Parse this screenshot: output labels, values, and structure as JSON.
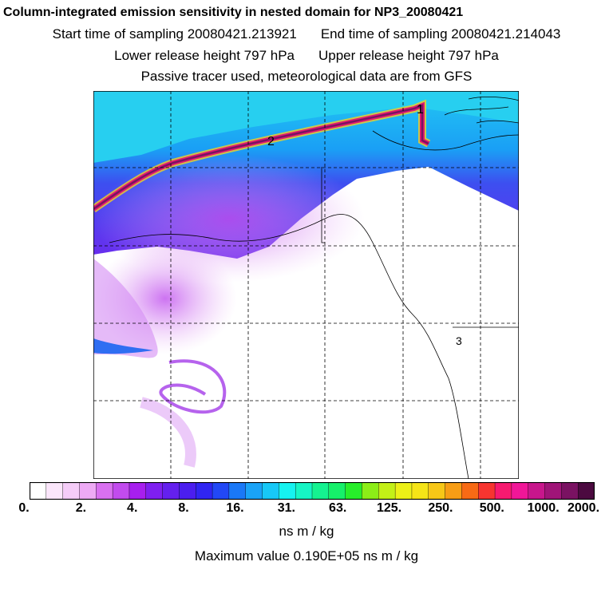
{
  "title": "Column-integrated emission sensitivity in nested domain for NP3_20080421",
  "start_time": "Start time of sampling 20080421.213921",
  "end_time": "End time of sampling 20080421.214043",
  "lower_height": "Lower release height  797 hPa",
  "upper_height": "Upper release height  797 hPa",
  "tracer_note": "Passive tracer used, meteorological data are from GFS",
  "point_labels": [
    "1",
    "2",
    "3"
  ],
  "colorbar": {
    "ticks": [
      "0.",
      "2.",
      "4.",
      "8.",
      "16.",
      "31.",
      "63.",
      "125.",
      "250.",
      "500.",
      "1000.",
      "2000."
    ],
    "colors": [
      "#ffffff",
      "#fbe6fb",
      "#f5ccf8",
      "#eeaaf5",
      "#d970f0",
      "#c24bee",
      "#a71fee",
      "#7f1ff0",
      "#6420ee",
      "#4b1eef",
      "#3025f2",
      "#2248f5",
      "#1a78f7",
      "#1aa3f7",
      "#17c8f7",
      "#16f2f0",
      "#16f5c5",
      "#15f290",
      "#16f06a",
      "#27ee2a",
      "#8cee17",
      "#c3f017",
      "#ecf017",
      "#f5e417",
      "#f7c717",
      "#f79d15",
      "#f76a15",
      "#f73530",
      "#f71a70",
      "#f01698",
      "#c8168c",
      "#a01478",
      "#7a1262",
      "#4c0a40"
    ],
    "units": "ns m / kg"
  },
  "max_value": "Maximum value  0.190E+05 ns m / kg",
  "colors": {
    "ocean": "#16bdf2",
    "land_white": "#ffffff",
    "plume_core": "#8a1a5a"
  }
}
